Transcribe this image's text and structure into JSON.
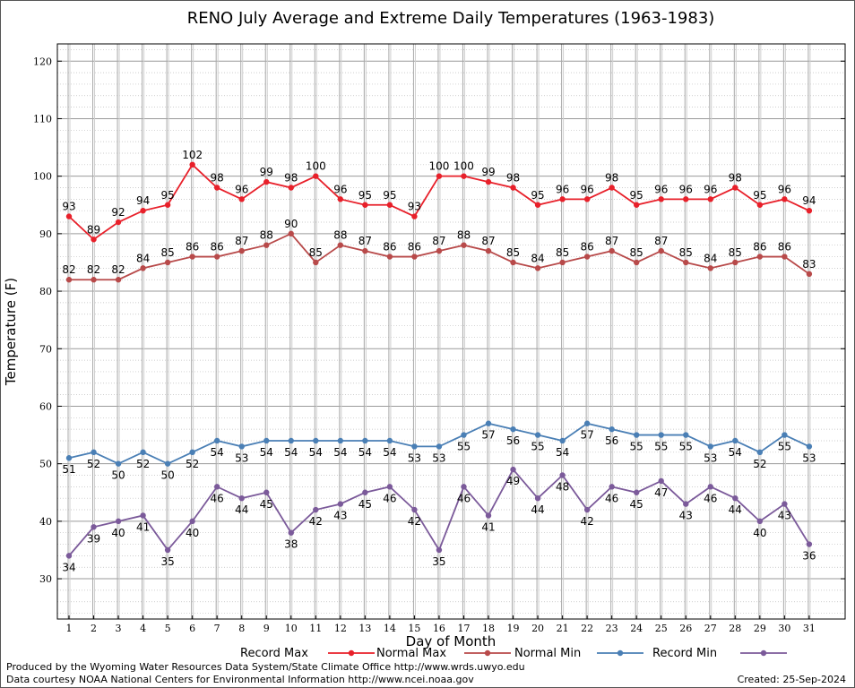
{
  "chart_data": {
    "type": "line",
    "title": "RENO July Average and Extreme Daily Temperatures (1963-1983)",
    "xlabel": "Day of Month",
    "ylabel": "Temperature (F)",
    "ylim": [
      23,
      123
    ],
    "yticks": [
      30,
      40,
      50,
      60,
      70,
      80,
      90,
      100,
      110,
      120
    ],
    "x": [
      1,
      2,
      3,
      4,
      5,
      6,
      7,
      8,
      9,
      10,
      11,
      12,
      13,
      14,
      15,
      16,
      17,
      18,
      19,
      20,
      21,
      22,
      23,
      24,
      25,
      26,
      27,
      28,
      29,
      30,
      31
    ],
    "grid": true,
    "legend_position": "bottom",
    "series": [
      {
        "name": "Record Max",
        "color": "#e8202a",
        "label_pos": "above",
        "values": [
          93,
          89,
          92,
          94,
          95,
          102,
          98,
          96,
          99,
          98,
          100,
          96,
          95,
          95,
          93,
          100,
          100,
          99,
          98,
          95,
          96,
          96,
          98,
          95,
          96,
          96,
          96,
          98,
          95,
          96,
          94
        ]
      },
      {
        "name": "Normal Max",
        "color": "#b84a4a",
        "label_pos": "above",
        "values": [
          82,
          82,
          82,
          84,
          85,
          86,
          86,
          87,
          88,
          90,
          85,
          88,
          87,
          86,
          86,
          87,
          88,
          87,
          85,
          84,
          85,
          86,
          87,
          85,
          87,
          85,
          84,
          85,
          86,
          86,
          83
        ]
      },
      {
        "name": "Normal Min",
        "color": "#4a7fb5",
        "label_pos": "below",
        "values": [
          51,
          52,
          50,
          52,
          50,
          52,
          54,
          53,
          54,
          54,
          54,
          54,
          54,
          54,
          53,
          53,
          55,
          57,
          56,
          55,
          54,
          57,
          56,
          55,
          55,
          55,
          53,
          54,
          52,
          55,
          53
        ]
      },
      {
        "name": "Record Min",
        "color": "#7b5a9a",
        "label_pos": "below",
        "values": [
          34,
          39,
          40,
          41,
          35,
          40,
          46,
          44,
          45,
          38,
          42,
          43,
          45,
          46,
          42,
          35,
          46,
          41,
          49,
          44,
          48,
          42,
          46,
          45,
          47,
          43,
          46,
          44,
          40,
          43,
          36
        ]
      }
    ]
  },
  "footer": {
    "credit_line1": "Produced by the Wyoming Water Resources Data System/State Climate Office http://www.wrds.uwyo.edu",
    "credit_line2": "Data courtesy NOAA National Centers for Environmental Information http://www.ncei.noaa.gov",
    "created": "Created:  25-Sep-2024"
  }
}
